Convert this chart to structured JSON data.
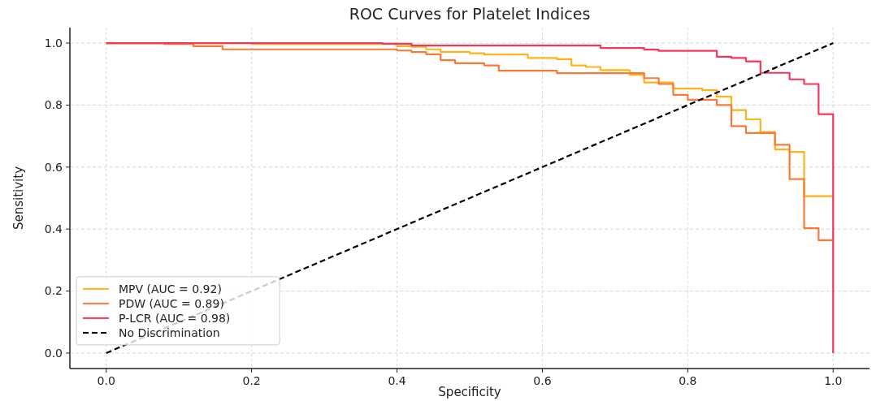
{
  "chart_data": {
    "type": "step",
    "title": "ROC Curves for Platelet Indices",
    "xlabel": "Specificity",
    "ylabel": "Sensitivity",
    "xlim": [
      -0.05,
      1.05
    ],
    "ylim": [
      -0.05,
      1.05
    ],
    "xticks": [
      {
        "value": 0,
        "label": "0.0"
      },
      {
        "value": 0.2,
        "label": "0.2"
      },
      {
        "value": 0.4,
        "label": "0.4"
      },
      {
        "value": 0.6,
        "label": "0.6"
      },
      {
        "value": 0.8,
        "label": "0.8"
      },
      {
        "value": 1,
        "label": "1.0"
      }
    ],
    "yticks": [
      {
        "value": 0,
        "label": "0.0"
      },
      {
        "value": 0.2,
        "label": "0.2"
      },
      {
        "value": 0.4,
        "label": "0.4"
      },
      {
        "value": 0.6,
        "label": "0.6"
      },
      {
        "value": 0.8,
        "label": "0.8"
      },
      {
        "value": 1,
        "label": "1.0"
      }
    ],
    "grid": true,
    "legend": "bottom left",
    "series": [
      {
        "name": "MPV (AUC = 0.92)",
        "color": "#ffb319",
        "x": [
          0,
          0.2,
          0.4,
          0.42,
          0.44,
          0.46,
          0.5,
          0.52,
          0.58,
          0.62,
          0.64,
          0.66,
          0.68,
          0.72,
          0.74,
          0.78,
          0.82,
          0.84,
          0.86,
          0.88,
          0.9,
          0.92,
          0.94,
          0.96,
          1
        ],
        "values": [
          1,
          0.997,
          0.99,
          0.988,
          0.98,
          0.972,
          0.967,
          0.963,
          0.952,
          0.948,
          0.928,
          0.923,
          0.913,
          0.898,
          0.873,
          0.853,
          0.848,
          0.827,
          0.784,
          0.754,
          0.713,
          0.657,
          0.649,
          0.506,
          0.506
        ]
      },
      {
        "name": "PDW (AUC = 0.89)",
        "color": "#f97b36",
        "x": [
          0,
          0.08,
          0.12,
          0.16,
          0.4,
          0.42,
          0.44,
          0.46,
          0.48,
          0.52,
          0.54,
          0.62,
          0.74,
          0.76,
          0.78,
          0.8,
          0.84,
          0.86,
          0.88,
          0.92,
          0.94,
          0.96,
          0.98,
          1
        ],
        "values": [
          1,
          0.997,
          0.99,
          0.98,
          0.976,
          0.971,
          0.964,
          0.945,
          0.935,
          0.928,
          0.911,
          0.903,
          0.887,
          0.868,
          0.833,
          0.817,
          0.8,
          0.732,
          0.71,
          0.672,
          0.561,
          0.403,
          0.364,
          0.364
        ]
      },
      {
        "name": "P-LCR (AUC = 0.98)",
        "color": "#f5385a",
        "x": [
          0,
          0.38,
          0.42,
          0.68,
          0.74,
          0.76,
          0.84,
          0.86,
          0.88,
          0.9,
          0.94,
          0.96,
          0.98,
          1,
          1
        ],
        "values": [
          1,
          0.998,
          0.992,
          0.984,
          0.979,
          0.975,
          0.956,
          0.952,
          0.941,
          0.904,
          0.883,
          0.868,
          0.771,
          0.771,
          0
        ]
      },
      {
        "name": "No Discrimination",
        "type": "line",
        "color": "#000000",
        "line_style": "dashed",
        "x": [
          0,
          1
        ],
        "values": [
          0,
          1
        ]
      }
    ]
  }
}
